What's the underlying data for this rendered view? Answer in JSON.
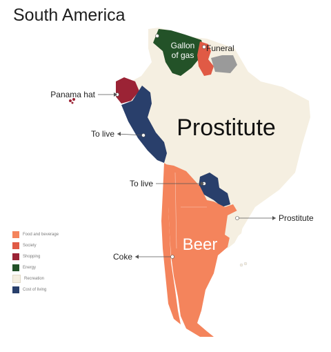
{
  "title": "South America",
  "colors": {
    "food": "#f4845c",
    "society": "#e05a45",
    "shopping": "#9b2335",
    "energy": "#235228",
    "recreation": "#f5efe1",
    "cost_of_living": "#293f6b",
    "unlabeled": "#9a9a9a"
  },
  "legend": [
    {
      "label": "Food and beverage",
      "color": "#f4845c"
    },
    {
      "label": "Society",
      "color": "#e05a45"
    },
    {
      "label": "Shopping",
      "color": "#9b2335"
    },
    {
      "label": "Energy",
      "color": "#235228"
    },
    {
      "label": "Recreation",
      "color": "#f5efe1"
    },
    {
      "label": "Cost of living",
      "color": "#293f6b"
    }
  ],
  "labels": {
    "venezuela": "Gallon of gas",
    "venezuela_line1": "Gallon",
    "venezuela_line2": "of gas",
    "guyana": "Funeral",
    "ecuador": "Panama hat",
    "peru": "To live",
    "brazil": "Prostitute",
    "paraguay": "To live",
    "uruguay": "Prostitute",
    "argentina": "Beer",
    "chile": "Coke"
  }
}
